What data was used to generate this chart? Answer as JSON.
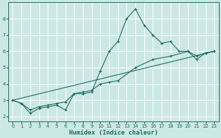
{
  "xlabel": "Humidex (Indice chaleur)",
  "xlim": [
    -0.5,
    23.5
  ],
  "ylim": [
    1.7,
    9.0
  ],
  "yticks": [
    2,
    3,
    4,
    5,
    6,
    7,
    8
  ],
  "xticks": [
    0,
    1,
    2,
    3,
    4,
    5,
    6,
    7,
    8,
    9,
    10,
    11,
    12,
    13,
    14,
    15,
    16,
    17,
    18,
    19,
    20,
    21,
    22,
    23
  ],
  "background_color": "#cce8e5",
  "grid_color": "#b0d8d4",
  "line_color": "#1a6b5e",
  "line1_x": [
    0,
    1,
    2,
    3,
    4,
    5,
    6,
    7,
    8,
    9,
    10,
    11,
    12,
    13,
    14,
    15,
    16,
    17,
    18,
    19,
    20,
    21,
    22,
    23
  ],
  "line1_y": [
    3.0,
    2.8,
    2.2,
    2.5,
    2.6,
    2.7,
    2.4,
    3.4,
    3.4,
    3.5,
    4.8,
    6.0,
    6.6,
    8.0,
    8.6,
    7.6,
    7.0,
    6.5,
    6.6,
    6.0,
    6.0,
    5.5,
    5.9,
    6.0
  ],
  "line2_x": [
    0,
    1,
    2,
    3,
    4,
    5,
    6,
    7,
    8,
    9,
    10,
    11,
    12,
    14,
    16,
    18,
    20,
    21,
    22,
    23
  ],
  "line2_y": [
    3.0,
    2.8,
    2.4,
    2.6,
    2.7,
    2.8,
    2.9,
    3.4,
    3.5,
    3.6,
    4.0,
    4.1,
    4.2,
    5.0,
    5.5,
    5.7,
    6.0,
    5.7,
    5.9,
    6.0
  ],
  "line3_x": [
    0,
    23
  ],
  "line3_y": [
    3.0,
    6.0
  ]
}
